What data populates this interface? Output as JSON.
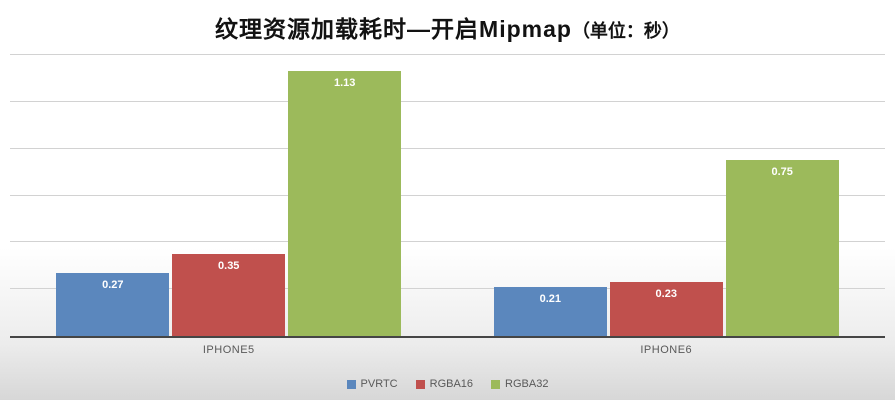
{
  "title": {
    "main": "纹理资源加载耗时—开启Mipmap",
    "suffix": "（单位：秒）"
  },
  "chart_data": {
    "type": "bar",
    "title": "纹理资源加载耗时—开启Mipmap（单位：秒）",
    "categories": [
      "IPHONE5",
      "IPHONE6"
    ],
    "series": [
      {
        "name": "PVRTC",
        "color": "#5b87bd",
        "values": [
          0.27,
          0.21
        ]
      },
      {
        "name": "RGBA16",
        "color": "#c0504d",
        "values": [
          0.35,
          0.23
        ]
      },
      {
        "name": "RGBA32",
        "color": "#9cba5b",
        "values": [
          1.13,
          0.75
        ]
      }
    ],
    "xlabel": "",
    "ylabel": "",
    "ylim": [
      0,
      1.2
    ],
    "gridline_step": 0.2,
    "grid": true,
    "legend_position": "bottom",
    "value_labels": true
  }
}
